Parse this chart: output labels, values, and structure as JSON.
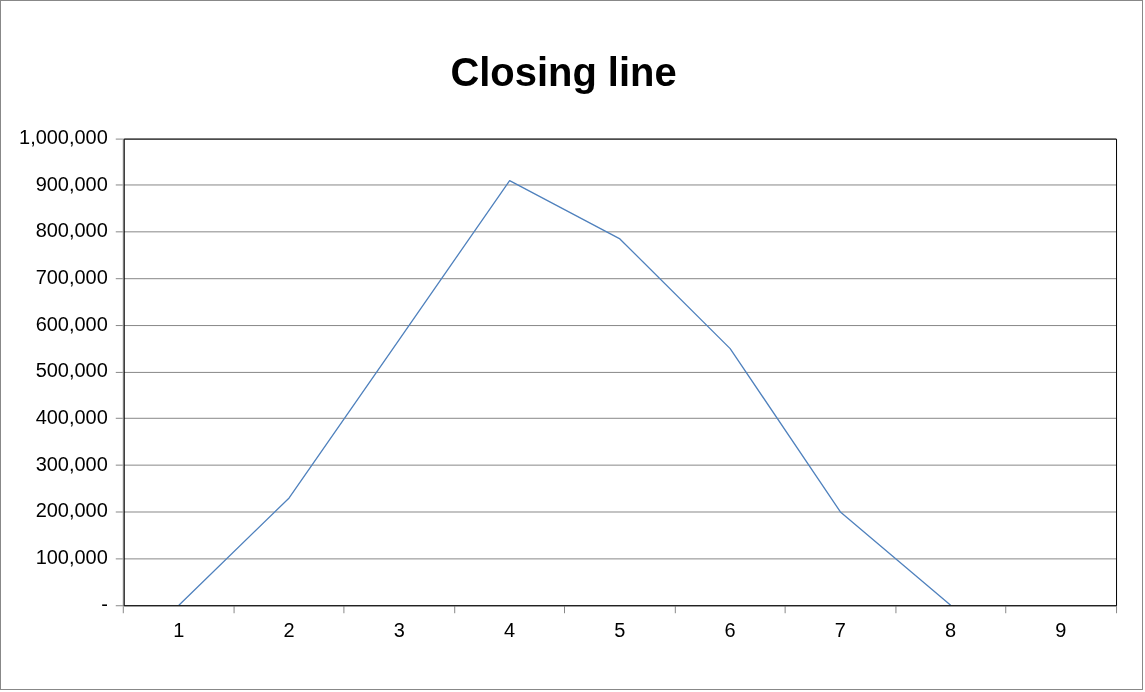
{
  "chart_data": {
    "type": "line",
    "title": "Closing line",
    "categories": [
      "1",
      "2",
      "3",
      "4",
      "5",
      "6",
      "7",
      "8",
      "9"
    ],
    "series": [
      {
        "color": "#4f81bd",
        "values": [
          0,
          230000,
          570000,
          910000,
          785000,
          550000,
          200000,
          0,
          null
        ]
      }
    ],
    "ylim": [
      0,
      1000000
    ],
    "yticks": [
      {
        "value": 0,
        "label": "-"
      },
      {
        "value": 100000,
        "label": "100,000"
      },
      {
        "value": 200000,
        "label": "200,000"
      },
      {
        "value": 300000,
        "label": "300,000"
      },
      {
        "value": 400000,
        "label": "400,000"
      },
      {
        "value": 500000,
        "label": "500,000"
      },
      {
        "value": 600000,
        "label": "600,000"
      },
      {
        "value": 700000,
        "label": "700,000"
      },
      {
        "value": 800000,
        "label": "800,000"
      },
      {
        "value": 900000,
        "label": "900,000"
      },
      {
        "value": 1000000,
        "label": "1,000,000"
      }
    ],
    "grid": "y",
    "legend": false,
    "marker": "none",
    "line_style": "solid"
  }
}
